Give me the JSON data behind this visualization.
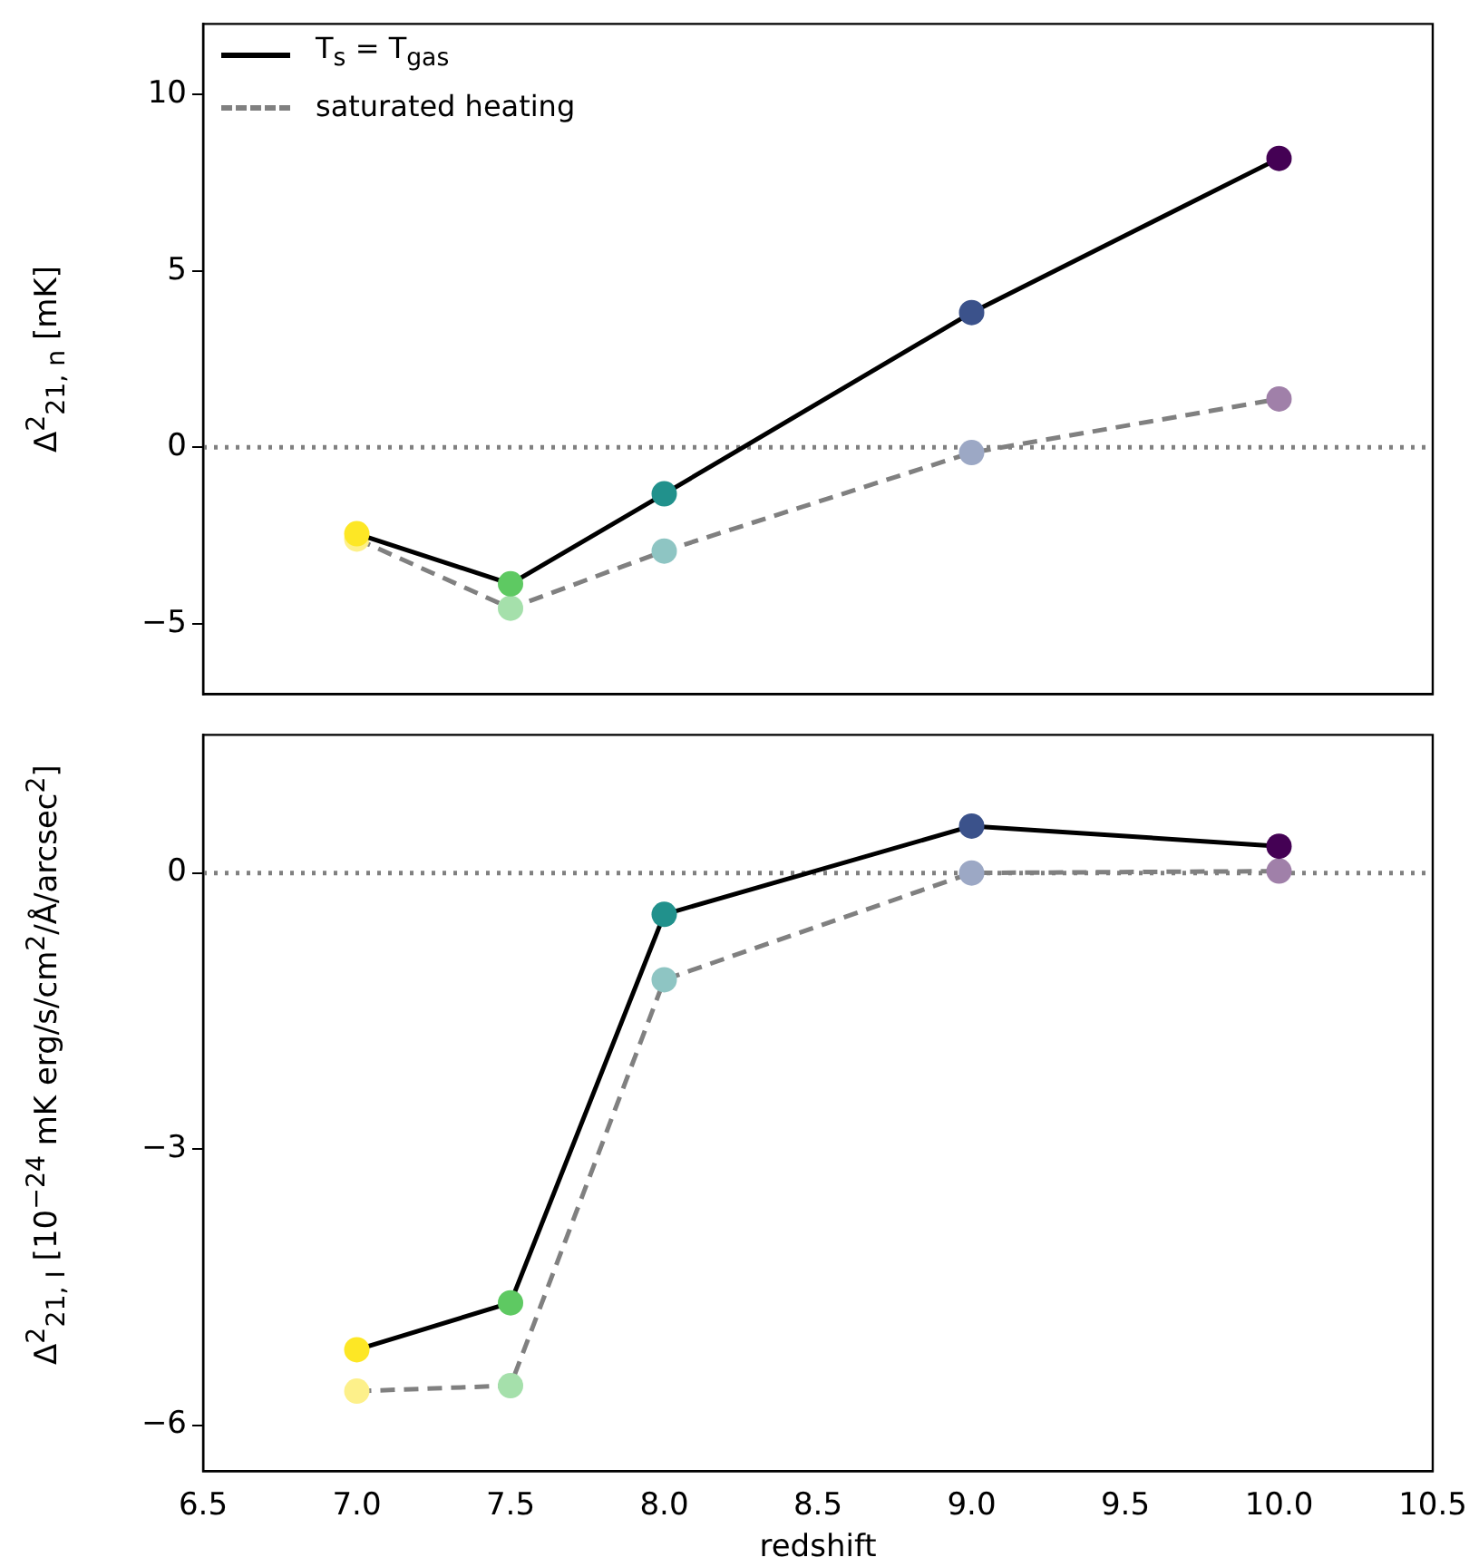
{
  "chart_data": [
    {
      "type": "line",
      "ylabel": "Δ$^{2}$$_{21, n}$ [mK]",
      "x": [
        7.0,
        7.5,
        8.0,
        9.0,
        10.0
      ],
      "xlim": [
        6.5,
        10.5
      ],
      "xticks": [
        {
          "value": 6.5,
          "label": null
        },
        {
          "value": 7,
          "label": null
        },
        {
          "value": 7.5,
          "label": null
        },
        {
          "value": 8,
          "label": null
        },
        {
          "value": 8.5,
          "label": null
        },
        {
          "value": 9,
          "label": null
        },
        {
          "value": 9.5,
          "label": null
        },
        {
          "value": 10,
          "label": null
        },
        {
          "value": 10.5,
          "label": null
        }
      ],
      "ylim": [
        -7,
        12
      ],
      "yticks": [
        -5,
        0,
        5,
        10
      ],
      "tick_labels": "y",
      "grid": false,
      "legend": "top left",
      "marker": "circle",
      "ref_lines": [
        {
          "axis": "y",
          "value": 0,
          "line_style": "dotted",
          "color": "#808080"
        }
      ],
      "series": [
        {
          "name": "T$_{s}$ = T$_{gas}$",
          "color": "#000000",
          "line_style": "solid",
          "values": [
            -2.45,
            -3.87,
            -1.32,
            3.82,
            8.19
          ],
          "colors": [
            "#fde725",
            "#5ec962",
            "#21918c",
            "#3b528b",
            "#440154"
          ]
        },
        {
          "name": "saturated heating",
          "color": "#808080",
          "line_style": "dashed",
          "values": [
            -2.6,
            -4.56,
            -2.94,
            -0.15,
            1.37
          ],
          "colors": [
            "#fdf08a",
            "#a5e0ab",
            "#8ec5c3",
            "#9ca8c5",
            "#a080a9"
          ]
        }
      ]
    },
    {
      "type": "line",
      "xlabel": "redshift",
      "ylabel": "Δ$^{2}$$_{21, I}$ [10$^{−24}$ mK erg/s/cm$^{2}$/Å/arcsec$^{2}$]",
      "x": [
        7.0,
        7.5,
        8.0,
        9.0,
        10.0
      ],
      "xlim": [
        6.5,
        10.5
      ],
      "xticks": [
        6.5,
        {
          "value": 7,
          "label": "7.0"
        },
        7.5,
        {
          "value": 8,
          "label": "8.0"
        },
        8.5,
        {
          "value": 9,
          "label": "9.0"
        },
        9.5,
        {
          "value": 10,
          "label": "10.0"
        },
        10.5
      ],
      "ylim": [
        -6.5,
        1.5
      ],
      "yticks": [
        -6,
        -3,
        0
      ],
      "grid": false,
      "marker": "circle",
      "ref_lines": [
        {
          "axis": "y",
          "value": 0,
          "line_style": "dotted",
          "color": "#808080"
        }
      ],
      "series": [
        {
          "color": "#000000",
          "line_style": "solid",
          "values": [
            -5.18,
            -4.67,
            -0.45,
            0.51,
            0.29
          ],
          "colors": [
            "#fde725",
            "#5ec962",
            "#21918c",
            "#3b528b",
            "#440154"
          ]
        },
        {
          "color": "#808080",
          "line_style": "dashed",
          "values": [
            -5.63,
            -5.57,
            -1.16,
            0.0,
            0.02
          ],
          "colors": [
            "#fdf08a",
            "#a5e0ab",
            "#8ec5c3",
            "#9ca8c5",
            "#a080a9"
          ]
        }
      ]
    }
  ]
}
